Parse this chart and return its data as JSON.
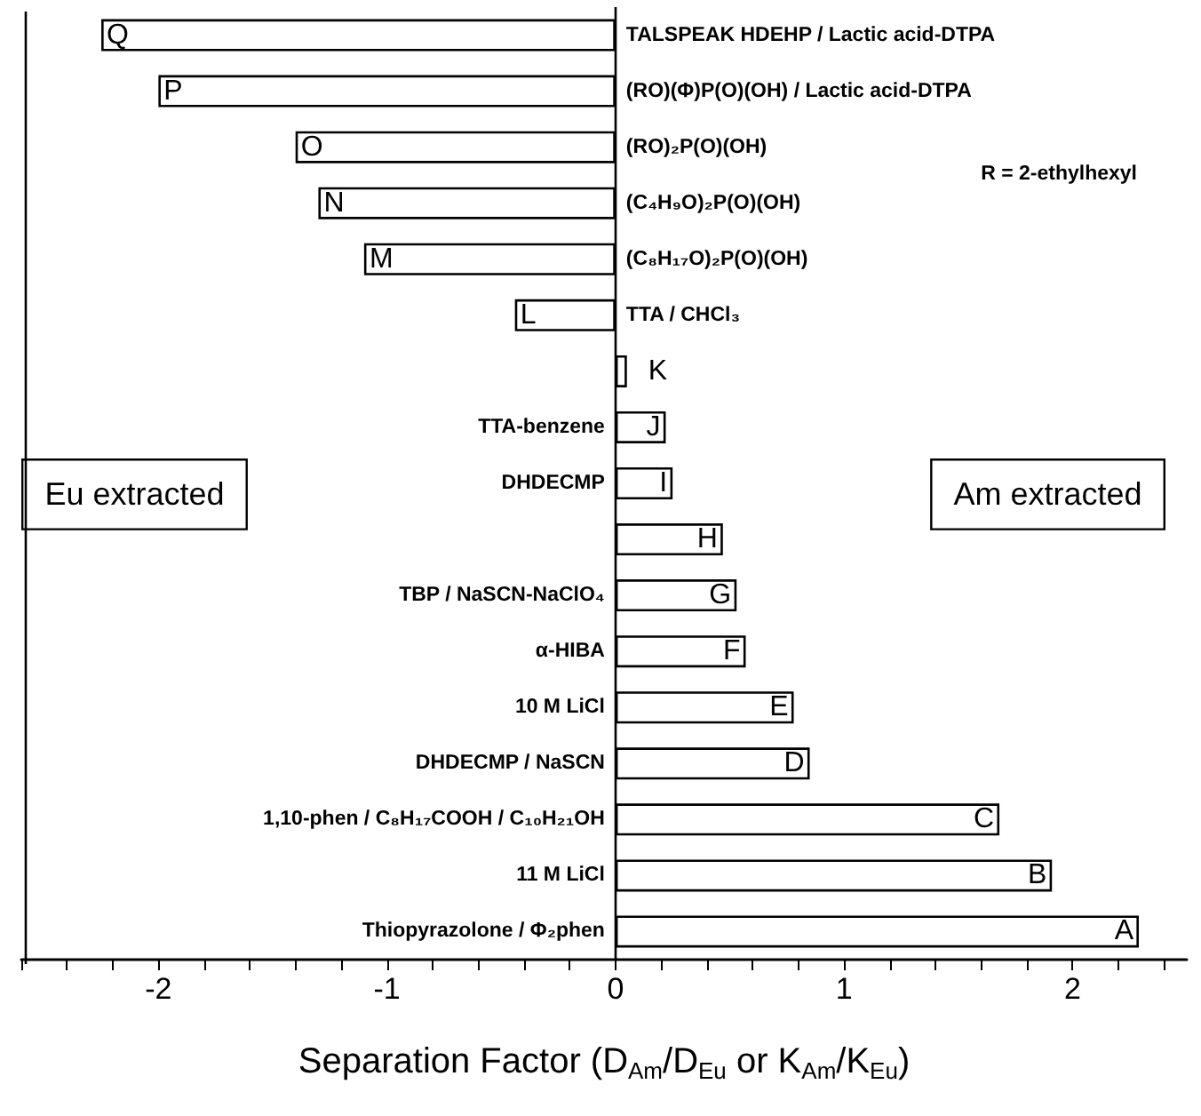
{
  "chart_data": {
    "type": "bar",
    "orientation": "horizontal",
    "xlabel": "Separation Factor (D$_{Am}$/D$_{Eu}$ or K$_{Am}$/K$_{Eu}$)",
    "categories": [
      "TALSPEAK HDEHP / Lactic acid-DTPA",
      "(RO)(Φ)P(O)(OH) / Lactic acid-DTPA",
      "(RO)₂P(O)(OH)",
      "(C₄H₉O)₂P(O)(OH)",
      "(C₈H₁₇O)₂P(O)(OH)",
      "TTA / CHCl₃",
      null,
      "TTA-benzene",
      "DHDECMP",
      null,
      "TBP / NaSCN-NaClO₄",
      "α-HIBA",
      "10 M LiCl",
      "DHDECMP / NaSCN",
      "1,10-phen / C₈H₁₇COOH / C₁₀H₂₁OH",
      "11 M LiCl",
      "Thiopyrazolone / Φ₂phen"
    ],
    "values": [
      -2.25,
      -2.0,
      -1.4,
      -1.3,
      -1.1,
      -0.44,
      0.05,
      0.22,
      0.25,
      0.47,
      0.53,
      0.57,
      0.78,
      0.85,
      1.68,
      1.91,
      2.29
    ],
    "color": "#ffffff",
    "xlim": [
      -2.6,
      2.5
    ],
    "xticks": [
      {
        "value": -2.6,
        "label": null
      },
      {
        "value": -2.4,
        "label": null
      },
      {
        "value": -2.2,
        "label": null
      },
      -2,
      {
        "value": -1.8,
        "label": null
      },
      {
        "value": -1.6,
        "label": null
      },
      {
        "value": -1.4,
        "label": null
      },
      {
        "value": -1.2,
        "label": null
      },
      -1,
      {
        "value": -0.8,
        "label": null
      },
      {
        "value": -0.6,
        "label": null
      },
      {
        "value": -0.4,
        "label": null
      },
      {
        "value": -0.2,
        "label": null
      },
      0,
      {
        "value": 0.2,
        "label": null
      },
      {
        "value": 0.4,
        "label": null
      },
      {
        "value": 0.6,
        "label": null
      },
      {
        "value": 0.8,
        "label": null
      },
      1,
      {
        "value": 1.2,
        "label": null
      },
      {
        "value": 1.4,
        "label": null
      },
      {
        "value": 1.6,
        "label": null
      },
      {
        "value": 1.8,
        "label": null
      },
      2,
      {
        "value": 2.2,
        "label": null
      },
      {
        "value": 2.4,
        "label": null
      }
    ],
    "grid": false,
    "annotations": [
      "R = 2-ethylhexyl",
      "Eu extracted",
      "Am extracted",
      {
        "text": "Q",
        "x": -2.25,
        "y": "TALSPEAK HDEHP / Lactic acid-DTPA"
      },
      {
        "text": "P",
        "x": -2.0,
        "y": "(RO)(Φ)P(O)(OH) / Lactic acid-DTPA"
      },
      {
        "text": "O",
        "x": -1.4,
        "y": "(RO)₂P(O)(OH)"
      },
      {
        "text": "N",
        "x": -1.3,
        "y": "(C₄H₉O)₂P(O)(OH)"
      },
      {
        "text": "M",
        "x": -1.1,
        "y": "(C₈H₁₇O)₂P(O)(OH)"
      },
      {
        "text": "L",
        "x": -0.44,
        "y": "TTA / CHCl₃"
      },
      {
        "text": "K",
        "x": 0.05
      },
      {
        "text": "J",
        "x": 0.22,
        "y": "TTA-benzene"
      },
      {
        "text": "I",
        "x": 0.25,
        "y": "DHDECMP"
      },
      {
        "text": "H",
        "x": 0.47
      },
      {
        "text": "G",
        "x": 0.53,
        "y": "TBP / NaSCN-NaClO₄"
      },
      {
        "text": "F",
        "x": 0.57,
        "y": "α-HIBA"
      },
      {
        "text": "E",
        "x": 0.78,
        "y": "10 M LiCl"
      },
      {
        "text": "D",
        "x": 0.85,
        "y": "DHDECMP / NaSCN"
      },
      {
        "text": "C",
        "x": 1.68,
        "y": "1,10-phen / C₈H₁₇COOH / C₁₀H₂₁OH"
      },
      {
        "text": "B",
        "x": 1.91,
        "y": "11 M LiCl"
      },
      {
        "text": "A",
        "x": 2.29,
        "y": "Thiopyrazolone / Φ₂phen"
      }
    ]
  }
}
